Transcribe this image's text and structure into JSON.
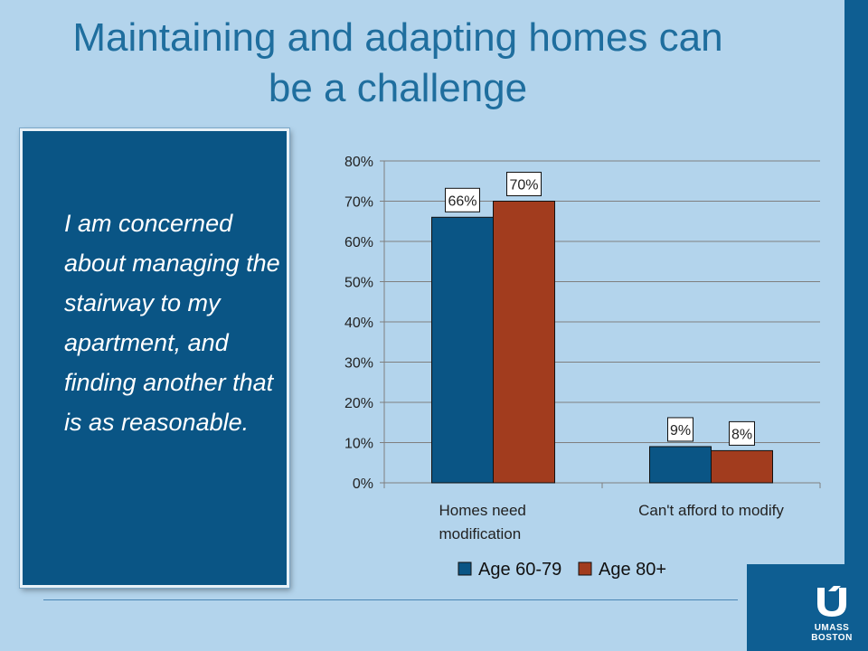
{
  "slide": {
    "title_line1": "Maintaining and adapting homes can",
    "title_line2": "be a challenge",
    "quote": "I am concerned about managing the stairway to my apartment, and finding another that is as reasonable.",
    "logo": {
      "icon": "umass-boston-logo-icon",
      "line1": "UMASS",
      "line2": "BOSTON"
    }
  },
  "colors": {
    "background": "#b3d4ec",
    "title": "#1f6e9e",
    "quote_box": "#0a5585",
    "series_1": "#0a5585",
    "series_2": "#a23c1e"
  },
  "chart_data": {
    "type": "bar",
    "title": "",
    "xlabel": "",
    "ylabel": "",
    "categories": [
      "Homes need modification",
      "Can't afford to modify"
    ],
    "category_lines": [
      [
        "Homes need",
        "modification"
      ],
      [
        "Can't afford to modify"
      ]
    ],
    "series": [
      {
        "name": "Age 60-79",
        "values": [
          66,
          9
        ],
        "labels": [
          "66%",
          "9%"
        ],
        "color": "#0a5585"
      },
      {
        "name": "Age 80+",
        "values": [
          70,
          8
        ],
        "labels": [
          "70%",
          "8%"
        ],
        "color": "#a23c1e"
      }
    ],
    "ylim": [
      0,
      80
    ],
    "yticks": [
      0,
      10,
      20,
      30,
      40,
      50,
      60,
      70,
      80
    ],
    "ytick_labels": [
      "0%",
      "10%",
      "20%",
      "30%",
      "40%",
      "50%",
      "60%",
      "70%",
      "80%"
    ],
    "grid": true,
    "legend": "bottom"
  }
}
